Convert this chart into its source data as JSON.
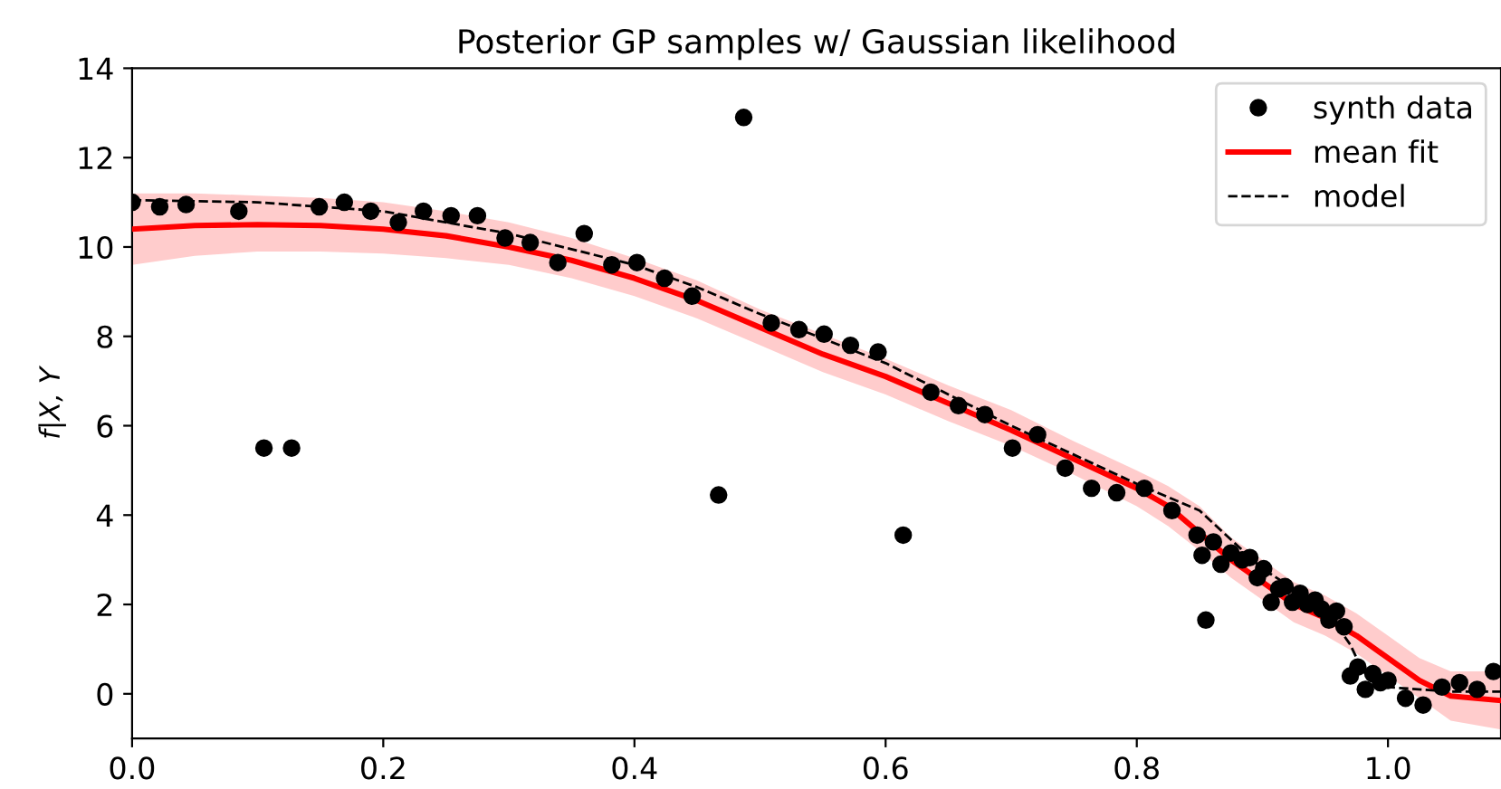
{
  "chart_data": {
    "type": "scatter",
    "title": "Posterior GP samples w/ Gaussian likelihood",
    "ylabel": "f|X, Y",
    "xlim": [
      0,
      1.09
    ],
    "xticks": [
      {
        "value": 0,
        "label": "0.0"
      },
      {
        "value": 0.2,
        "label": "0.2"
      },
      {
        "value": 0.4,
        "label": "0.4"
      },
      {
        "value": 0.6,
        "label": "0.6"
      },
      {
        "value": 0.8,
        "label": "0.8"
      },
      {
        "value": 1.0,
        "label": "1.0"
      }
    ],
    "ylim": [
      -1,
      14
    ],
    "yticks": [
      0,
      2,
      4,
      6,
      8,
      10,
      12,
      14
    ],
    "grid": false,
    "legend": "top right",
    "series": [
      {
        "name": "synth data",
        "marker": "circle",
        "color": "#000000",
        "x": [
          0,
          0.022,
          0.043,
          0.085,
          0.105,
          0.127,
          0.149,
          0.169,
          0.19,
          0.212,
          0.232,
          0.254,
          0.275,
          0.297,
          0.317,
          0.339,
          0.36,
          0.382,
          0.402,
          0.424,
          0.446,
          0.467,
          0.487,
          0.509,
          0.531,
          0.551,
          0.572,
          0.594,
          0.614,
          0.636,
          0.658,
          0.679,
          0.701,
          0.721,
          0.743,
          0.764,
          0.784,
          0.806,
          0.828,
          0.848,
          0.855,
          0.852,
          0.861,
          0.867,
          0.875,
          0.884,
          0.89,
          0.896,
          0.901,
          0.907,
          0.913,
          0.918,
          0.924,
          0.93,
          0.936,
          0.942,
          0.947,
          0.953,
          0.959,
          0.965,
          0.97,
          0.976,
          0.982,
          0.988,
          0.994,
          1.0,
          1.014,
          1.028,
          1.043,
          1.057,
          1.071,
          1.084
        ],
        "values": [
          11.0,
          10.9,
          10.95,
          10.8,
          5.5,
          5.5,
          10.9,
          11.0,
          10.8,
          10.55,
          10.8,
          10.7,
          10.7,
          10.2,
          10.1,
          9.65,
          10.3,
          9.6,
          9.65,
          9.3,
          8.9,
          4.45,
          12.9,
          8.3,
          8.15,
          8.05,
          7.8,
          7.65,
          3.55,
          6.75,
          6.45,
          6.25,
          5.5,
          5.8,
          5.05,
          4.6,
          4.5,
          4.6,
          4.1,
          3.55,
          1.65,
          3.1,
          3.4,
          2.9,
          3.15,
          3.0,
          3.05,
          2.6,
          2.8,
          2.05,
          2.35,
          2.4,
          2.05,
          2.25,
          2.0,
          2.1,
          1.9,
          1.65,
          1.85,
          1.5,
          0.4,
          0.6,
          0.1,
          0.45,
          0.25,
          0.3,
          -0.1,
          -0.25,
          0.15,
          0.25,
          0.1,
          0.5
        ]
      },
      {
        "name": "mean fit",
        "type": "line",
        "line_style": "solid",
        "color": "#ff0000",
        "x": [
          0,
          0.05,
          0.1,
          0.15,
          0.2,
          0.25,
          0.3,
          0.35,
          0.4,
          0.45,
          0.5,
          0.55,
          0.6,
          0.65,
          0.7,
          0.75,
          0.8,
          0.825,
          0.85,
          0.875,
          0.9,
          0.925,
          0.95,
          0.975,
          1.0,
          1.025,
          1.05,
          1.09
        ],
        "values": [
          10.4,
          10.48,
          10.5,
          10.48,
          10.4,
          10.25,
          10.0,
          9.7,
          9.3,
          8.8,
          8.2,
          7.6,
          7.1,
          6.5,
          5.9,
          5.25,
          4.6,
          4.2,
          3.6,
          3.0,
          2.5,
          2.0,
          1.7,
          1.3,
          0.8,
          0.3,
          -0.05,
          -0.15
        ],
        "lower": [
          9.6,
          9.8,
          9.9,
          9.9,
          9.85,
          9.75,
          9.6,
          9.3,
          8.9,
          8.4,
          7.8,
          7.2,
          6.7,
          6.1,
          5.55,
          4.9,
          4.2,
          3.75,
          3.2,
          2.6,
          2.1,
          1.6,
          1.3,
          0.9,
          0.4,
          -0.1,
          -0.6,
          -0.8
        ],
        "upper": [
          11.2,
          11.2,
          11.15,
          11.1,
          11.0,
          10.8,
          10.55,
          10.2,
          9.75,
          9.25,
          8.6,
          8.05,
          7.5,
          6.9,
          6.35,
          5.65,
          5.0,
          4.65,
          4.2,
          3.5,
          3.0,
          2.5,
          2.2,
          1.8,
          1.3,
          0.8,
          0.5,
          0.5
        ]
      },
      {
        "name": "model",
        "type": "line",
        "line_style": "dashed",
        "color": "#000000",
        "x": [
          0,
          0.1,
          0.2,
          0.3,
          0.4,
          0.45,
          0.5,
          0.6,
          0.7,
          0.8,
          0.85,
          0.9,
          0.95,
          0.97,
          0.98,
          1.0,
          1.05,
          1.09
        ],
        "values": [
          11.05,
          11.0,
          10.8,
          10.3,
          9.6,
          9.1,
          8.5,
          7.4,
          6.0,
          4.7,
          4.1,
          2.8,
          1.9,
          1.1,
          0.5,
          0.15,
          0.05,
          0.05
        ]
      }
    ]
  }
}
